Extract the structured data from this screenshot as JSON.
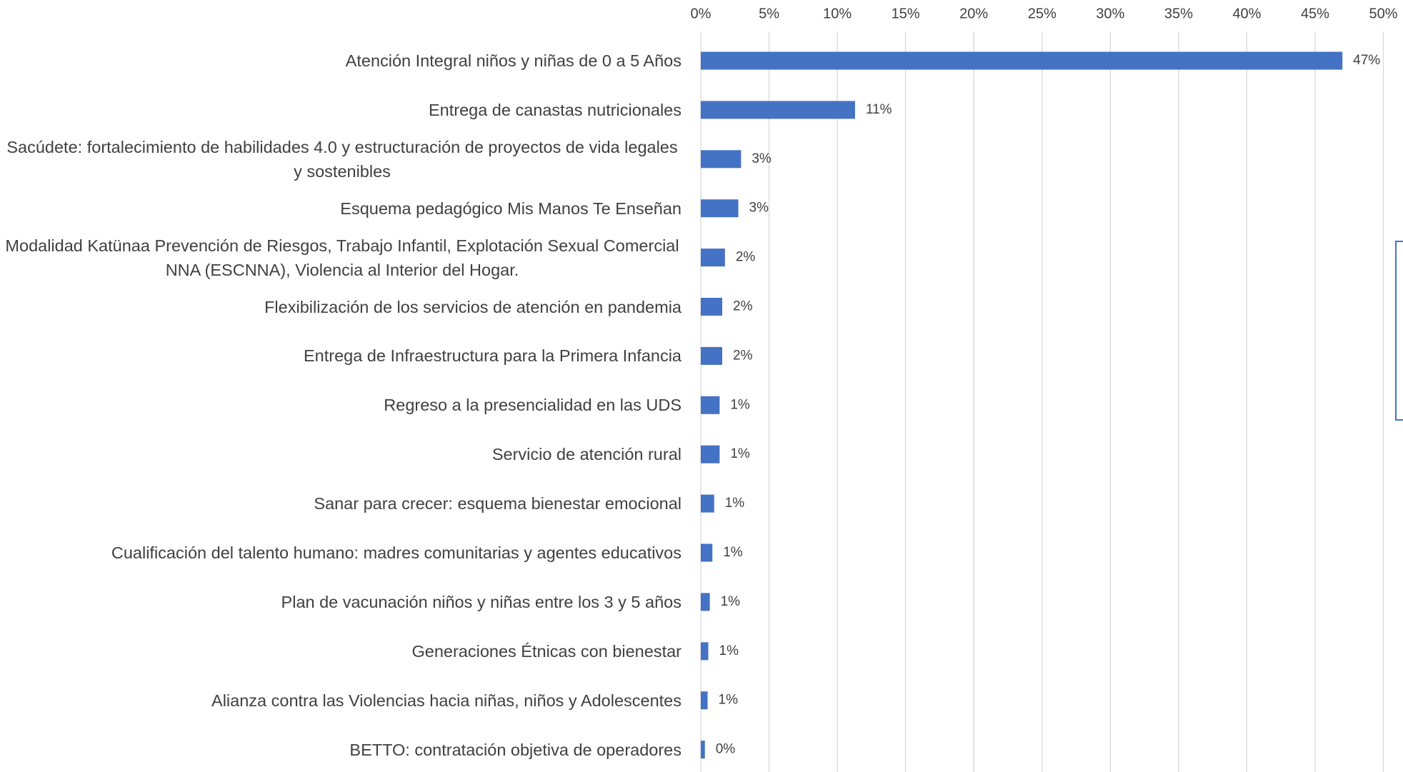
{
  "chart_data": {
    "type": "bar",
    "orientation": "horizontal",
    "categories": [
      "Atención Integral niños y niñas de 0 a 5 Años",
      "Entrega de canastas nutricionales",
      "Sacúdete: fortalecimiento de habilidades 4.0 y estructuración de proyectos de vida legales y sostenibles",
      "Esquema pedagógico Mis Manos Te Enseñan",
      "Modalidad Katünaa  Prevención de Riesgos, Trabajo Infantil, Explotación Sexual Comercial NNA (ESCNNA), Violencia al Interior del Hogar.",
      "Flexibilización de los servicios de atención en pandemia",
      "Entrega de Infraestructura para la Primera Infancia",
      "Regreso a la presencialidad en las UDS",
      "Servicio de atención rural",
      "Sanar para crecer: esquema bienestar emocional",
      "Cualificación del talento humano: madres comunitarias y agentes educativos",
      "Plan de vacunación niños y niñas entre los 3 y 5 años",
      "Generaciones Étnicas con bienestar",
      "Alianza contra las Violencias hacia niñas, niños y Adolescentes",
      "BETTO: contratación objetiva de operadores"
    ],
    "values": [
      47,
      11.3,
      2.95,
      2.75,
      1.77,
      1.57,
      1.57,
      1.38,
      1.38,
      0.98,
      0.85,
      0.66,
      0.55,
      0.5,
      0.3
    ],
    "value_labels": [
      "47%",
      "11%",
      "3%",
      "3%",
      "2%",
      "2%",
      "2%",
      "1%",
      "1%",
      "1%",
      "1%",
      "1%",
      "1%",
      "1%",
      "0%"
    ],
    "color": "#4472c4",
    "xlim": [
      0,
      50
    ],
    "xticks": [
      {
        "value": 0,
        "label": "0%"
      },
      {
        "value": 5,
        "label": "5%"
      },
      {
        "value": 10,
        "label": "10%"
      },
      {
        "value": 15,
        "label": "15%"
      },
      {
        "value": 20,
        "label": "20%"
      },
      {
        "value": 25,
        "label": "25%"
      },
      {
        "value": 30,
        "label": "30%"
      },
      {
        "value": 35,
        "label": "35%"
      },
      {
        "value": 40,
        "label": "40%"
      },
      {
        "value": 45,
        "label": "45%"
      },
      {
        "value": 50,
        "label": "50%"
      }
    ],
    "grid": true
  }
}
